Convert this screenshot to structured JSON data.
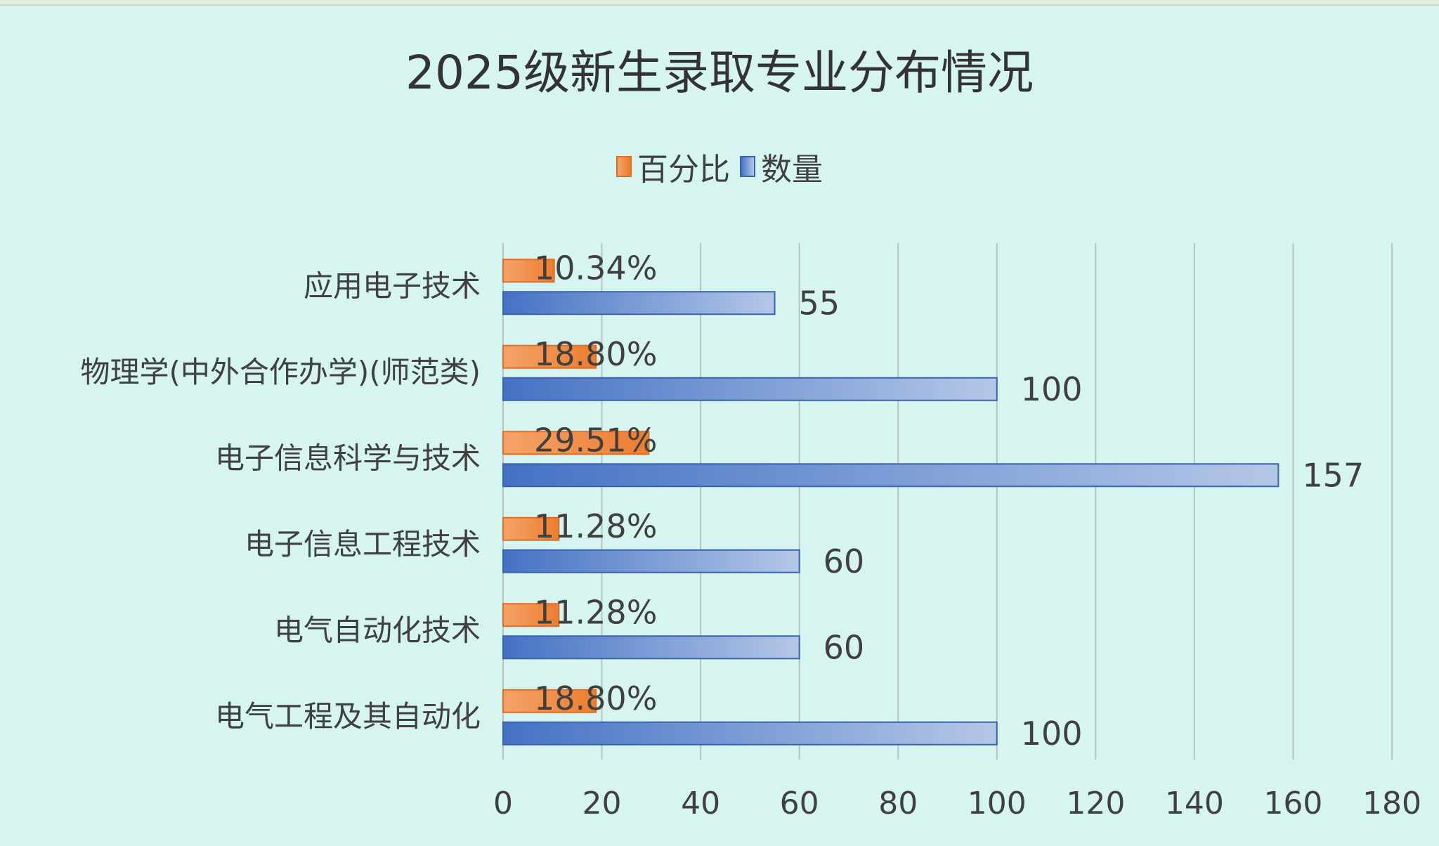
{
  "chart_data": {
    "type": "bar",
    "orientation": "horizontal",
    "title": "2025级新生录取专业分布情况",
    "categories": [
      "应用电子技术",
      "物理学(中外合作办学)(师范类)",
      "电子信息科学与技术",
      "电子信息工程技术",
      "电气自动化技术",
      "电气工程及其自动化"
    ],
    "series": [
      {
        "name": "百分比",
        "values": [
          10.34,
          18.8,
          29.51,
          11.28,
          11.28,
          18.8
        ],
        "labels": [
          "10.34%",
          "18.80%",
          "29.51%",
          "11.28%",
          "11.28%",
          "18.80%"
        ],
        "color": "#ed7d31"
      },
      {
        "name": "数量",
        "values": [
          55,
          100,
          157,
          60,
          60,
          100
        ],
        "labels": [
          "55",
          "100",
          "157",
          "60",
          "60",
          "100"
        ],
        "color": "#4472c4"
      }
    ],
    "xlim": [
      0,
      180
    ],
    "xticks": [
      "0",
      "20",
      "40",
      "60",
      "80",
      "100",
      "120",
      "140",
      "160",
      "180"
    ],
    "grid": true,
    "legend": "top"
  }
}
